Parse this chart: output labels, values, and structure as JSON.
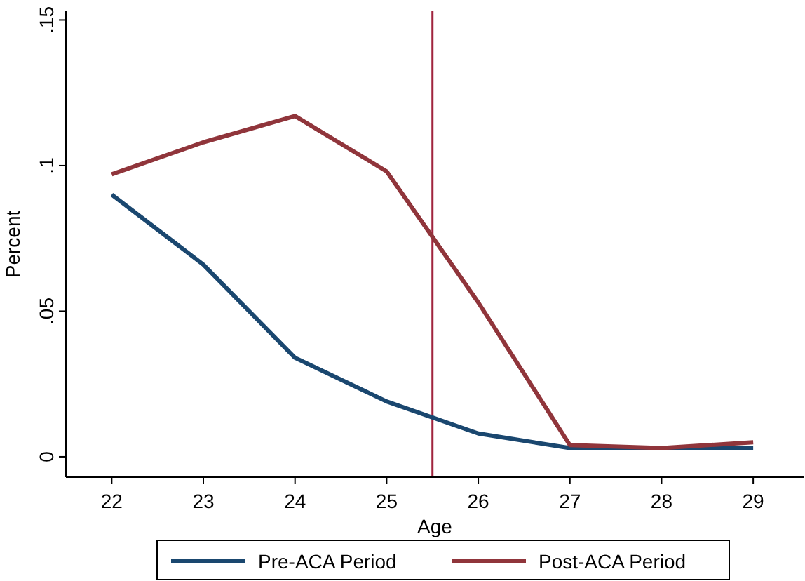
{
  "chart_data": {
    "type": "line",
    "xlabel": "Age",
    "ylabel": "Percent",
    "x": [
      22,
      23,
      24,
      25,
      26,
      27,
      28,
      29
    ],
    "series": [
      {
        "name": "Pre-ACA Period",
        "color": "#1a476f",
        "values": [
          0.09,
          0.066,
          0.034,
          0.019,
          0.008,
          0.003,
          0.003,
          0.003
        ]
      },
      {
        "name": "Post-ACA Period",
        "color": "#90353b",
        "values": [
          0.097,
          0.108,
          0.117,
          0.098,
          0.053,
          0.004,
          0.003,
          0.005
        ]
      }
    ],
    "xlim": [
      21.5,
      29.55
    ],
    "xticks": [
      22,
      23,
      24,
      25,
      26,
      27,
      28,
      29
    ],
    "ylim": [
      -0.007,
      0.153
    ],
    "yticks": [
      {
        "value": 0,
        "label": "0"
      },
      {
        "value": 0.05,
        "label": ".05"
      },
      {
        "value": 0.1,
        "label": ".1"
      },
      {
        "value": 0.15,
        "label": ".15"
      }
    ],
    "ref_lines": [
      {
        "axis": "x",
        "value": 25.5,
        "color": "#a0243e"
      }
    ],
    "legend": "bottom",
    "grid": false,
    "marker": "none",
    "line_style": "solid"
  }
}
